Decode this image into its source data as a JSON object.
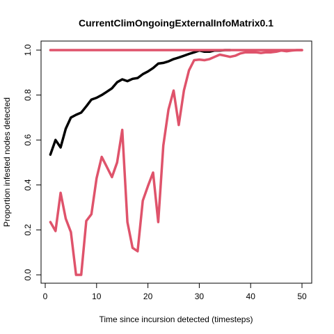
{
  "chart_data": {
    "type": "line",
    "title": "CurrentClimOngoingExternalInfoMatrix0.1",
    "xlabel": "Time since incursion detected (timesteps)",
    "ylabel": "Proportion infested nodes detected",
    "xlim": [
      0,
      50
    ],
    "ylim": [
      0,
      1
    ],
    "xticks": [
      0,
      10,
      20,
      30,
      40,
      50
    ],
    "yticks": [
      0.0,
      0.2,
      0.4,
      0.6,
      0.8,
      1.0
    ],
    "ytick_labels": [
      "0.0",
      "0.2",
      "0.4",
      "0.6",
      "0.8",
      "1.0"
    ],
    "grid": false,
    "legend": "none",
    "series": [
      {
        "color": "#000000",
        "x": [
          1,
          2,
          3,
          4,
          5,
          6,
          7,
          8,
          9,
          10,
          11,
          12,
          13,
          14,
          15,
          16,
          17,
          18,
          19,
          20,
          21,
          22,
          23,
          24,
          25,
          26,
          27,
          28,
          29,
          30,
          31,
          32,
          33,
          34,
          35,
          36
        ],
        "y": [
          0.535,
          0.6,
          0.567,
          0.65,
          0.7,
          0.712,
          0.722,
          0.75,
          0.78,
          0.788,
          0.8,
          0.815,
          0.83,
          0.857,
          0.87,
          0.862,
          0.872,
          0.876,
          0.893,
          0.905,
          0.92,
          0.94,
          0.943,
          0.95,
          0.96,
          0.967,
          0.975,
          0.983,
          0.99,
          0.998,
          0.993,
          0.993,
          0.998,
          0.998,
          1.0,
          1.0
        ]
      },
      {
        "color": "#DF536B",
        "x": [
          1,
          2,
          3,
          4,
          5,
          6,
          7,
          8,
          9,
          10,
          11,
          12,
          13,
          14,
          15,
          16,
          17,
          18,
          19,
          20,
          21,
          22,
          23,
          24,
          25,
          26,
          27,
          28,
          29,
          30,
          31,
          32,
          33,
          34,
          35,
          36,
          37,
          38,
          39,
          40,
          41,
          42,
          43,
          44,
          45,
          46,
          47,
          48,
          49,
          50
        ],
        "y": [
          0.235,
          0.195,
          0.365,
          0.25,
          0.19,
          0.0,
          0.0,
          0.24,
          0.27,
          0.43,
          0.525,
          0.48,
          0.435,
          0.5,
          0.645,
          0.235,
          0.12,
          0.105,
          0.33,
          0.395,
          0.455,
          0.235,
          0.575,
          0.735,
          0.82,
          0.667,
          0.82,
          0.91,
          0.955,
          0.958,
          0.955,
          0.96,
          0.97,
          0.98,
          0.975,
          0.97,
          0.975,
          0.985,
          0.99,
          0.99,
          0.99,
          0.987,
          0.99,
          0.99,
          0.993,
          0.998,
          0.995,
          0.998,
          1.0,
          1.0
        ]
      },
      {
        "color": "#DF536B",
        "x": [
          1,
          50
        ],
        "y": [
          1.0,
          1.0
        ]
      }
    ]
  }
}
